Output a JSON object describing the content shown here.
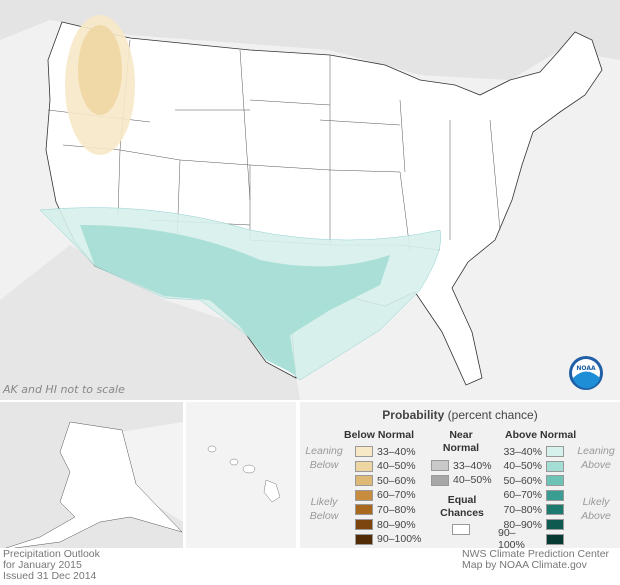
{
  "map": {
    "note": "AK and HI not to scale",
    "logo": "NOAA"
  },
  "legend": {
    "title": "Probability",
    "title_suffix": "(percent chance)",
    "below_header": "Below Normal",
    "near_header_1": "Near",
    "near_header_2": "Normal",
    "above_header": "Above Normal",
    "leaning_below": [
      "Leaning",
      "Below"
    ],
    "likely_below": [
      "Likely",
      "Below"
    ],
    "leaning_above": [
      "Leaning",
      "Above"
    ],
    "likely_above": [
      "Likely",
      "Above"
    ],
    "below": [
      {
        "label": "33–40%",
        "color": "#f7e8c6"
      },
      {
        "label": "40–50%",
        "color": "#eed6a3"
      },
      {
        "label": "50–60%",
        "color": "#deb875"
      },
      {
        "label": "60–70%",
        "color": "#c88c3e"
      },
      {
        "label": "70–80%",
        "color": "#a8681e"
      },
      {
        "label": "80–90%",
        "color": "#7c4510"
      },
      {
        "label": "90–100%",
        "color": "#512b05"
      }
    ],
    "near": [
      {
        "label": "33–40%",
        "color": "#c9c9c9"
      },
      {
        "label": "40–50%",
        "color": "#a7a7a7"
      }
    ],
    "above": [
      {
        "label": "33–40%",
        "color": "#d6f0ec"
      },
      {
        "label": "40–50%",
        "color": "#a3ddd4"
      },
      {
        "label": "50–60%",
        "color": "#6dc4b6"
      },
      {
        "label": "60–70%",
        "color": "#3a9d91"
      },
      {
        "label": "70–80%",
        "color": "#1d7a6f"
      },
      {
        "label": "80–90%",
        "color": "#0e5a50"
      },
      {
        "label": "90–100%",
        "color": "#073a32"
      }
    ],
    "equal_1": "Equal",
    "equal_2": "Chances"
  },
  "footer": {
    "left": [
      "Precipitation Outlook",
      "for January 2015",
      "Issued 31 Dec 2014"
    ],
    "right": [
      "NWS Climate Prediction Center",
      "Map by NOAA Climate.gov"
    ]
  }
}
